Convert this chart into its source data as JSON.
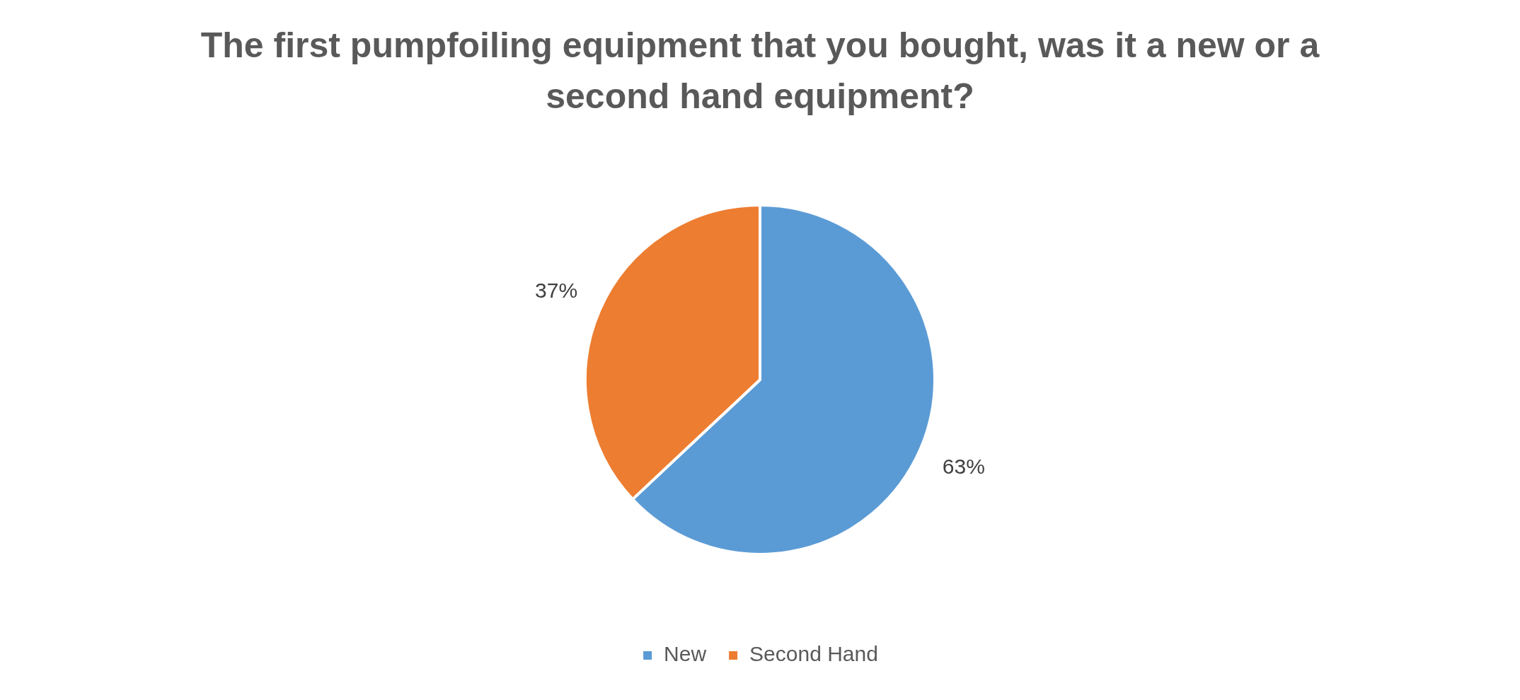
{
  "chart_data": {
    "type": "pie",
    "title": "The first pumpfoiling equipment that you bought, was it a new or a second hand equipment?",
    "categories": [
      "New",
      "Second Hand"
    ],
    "values": [
      63,
      37
    ],
    "colors": [
      "#5b9bd5",
      "#ed7d31"
    ],
    "value_labels": [
      "63%",
      "37%"
    ],
    "legend": "bottom"
  }
}
